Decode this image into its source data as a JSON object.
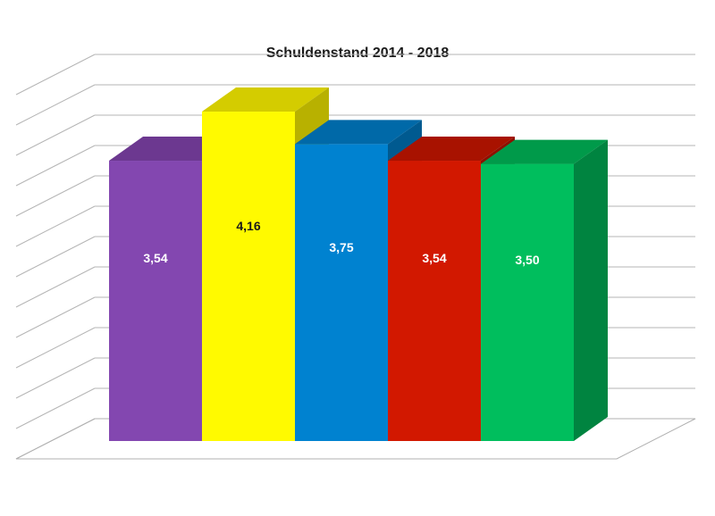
{
  "chart_data": {
    "type": "bar",
    "title": "Schuldenstand 2014 - 2018",
    "categories": [
      "",
      "",
      "",
      "",
      ""
    ],
    "values": [
      3.54,
      4.16,
      3.75,
      3.54,
      3.5
    ],
    "data_labels": [
      "3,54",
      "4,16",
      "3,75",
      "3,54",
      "3,50"
    ],
    "xlabel": "",
    "ylabel": "",
    "ylim": [
      0,
      4.6
    ],
    "grid": true,
    "three_d": true,
    "colors": {
      "front": [
        "#8347b0",
        "#fffa00",
        "#0082d0",
        "#d21800",
        "#00be5d"
      ],
      "top": [
        "#6c3890",
        "#d4cc00",
        "#0069a8",
        "#a81200",
        "#009a4a"
      ],
      "side": [
        "#5a2d78",
        "#b8b100",
        "#005a90",
        "#8e0f00",
        "#008440"
      ],
      "label": [
        "#ffffff",
        "#1a1a1a",
        "#ffffff",
        "#ffffff",
        "#ffffff"
      ]
    }
  }
}
